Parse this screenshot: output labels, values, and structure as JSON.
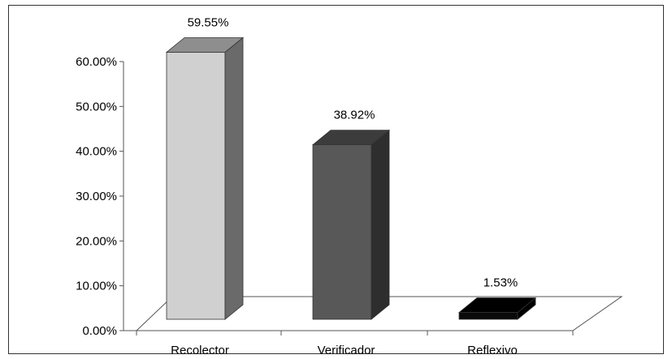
{
  "chart_data": {
    "type": "bar",
    "three_d": true,
    "categories": [
      "Recolector",
      "Verificador",
      "Reflexivo"
    ],
    "values": [
      59.55,
      38.92,
      1.53
    ],
    "data_labels": [
      "59.55%",
      "38.92%",
      "1.53%"
    ],
    "ylim": [
      0,
      60
    ],
    "yticks": [
      0,
      10,
      20,
      30,
      40,
      50,
      60
    ],
    "ytick_labels": [
      "0.00%",
      "10.00%",
      "20.00%",
      "30.00%",
      "40.00%",
      "50.00%",
      "60.00%"
    ],
    "grid": false,
    "legend": "none",
    "colors": {
      "bars": [
        {
          "front": "#d0d0d0",
          "side": "#6a6a6a",
          "top": "#8e8e8e"
        },
        {
          "front": "#585858",
          "side": "#2e2e2e",
          "top": "#3c3c3c"
        },
        {
          "front": "#0a0a0a",
          "side": "#000000",
          "top": "#000000"
        }
      ],
      "axis": "#555555",
      "floor": "#ffffff"
    }
  }
}
